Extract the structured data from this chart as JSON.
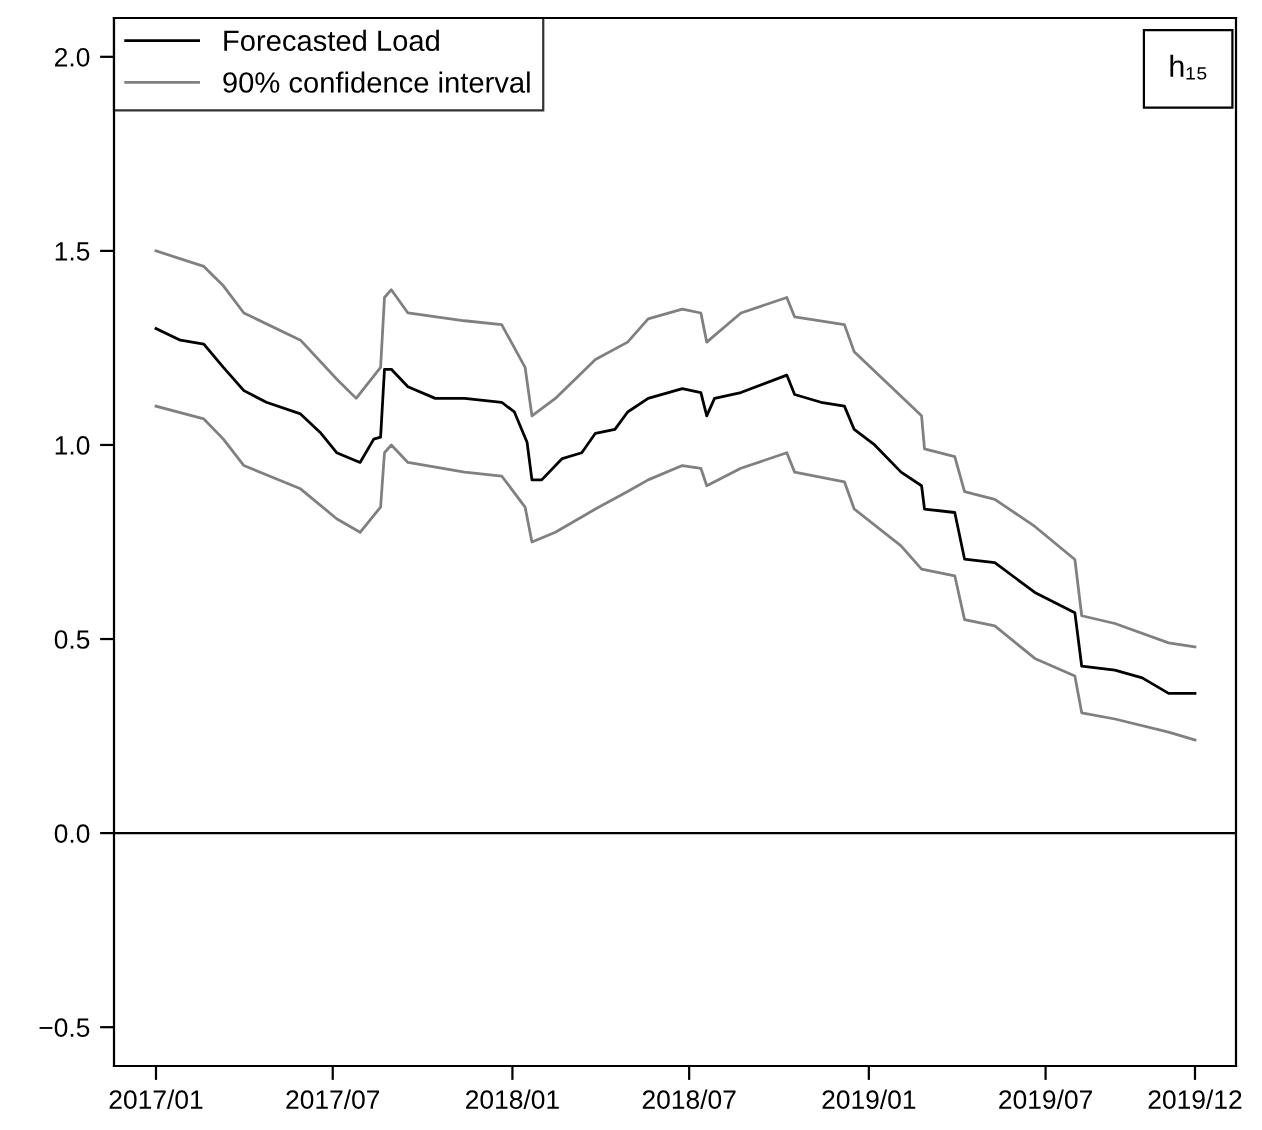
{
  "chart_data": {
    "type": "line",
    "annotations": [
      "h₁₅"
    ],
    "legend": "top left",
    "grid": false,
    "line_style": "solid",
    "marker": "none",
    "xlim": [
      "2016-11-19",
      "2020-01-12"
    ],
    "ylim": [
      -0.6,
      2.1
    ],
    "xticks": [
      {
        "value": "2017-01-01",
        "label": "2017/01"
      },
      {
        "value": "2017-07-01",
        "label": "2017/07"
      },
      {
        "value": "2018-01-01",
        "label": "2018/01"
      },
      {
        "value": "2018-07-01",
        "label": "2018/07"
      },
      {
        "value": "2019-01-01",
        "label": "2019/01"
      },
      {
        "value": "2019-07-01",
        "label": "2019/07"
      },
      {
        "value": "2019-12-01",
        "label": "2019/12"
      }
    ],
    "yticks": [
      {
        "value": -0.5,
        "label": "−0.5"
      },
      {
        "value": 0,
        "label": "0.0"
      },
      0.5,
      {
        "value": 1,
        "label": "1.0"
      },
      1.5,
      {
        "value": 2,
        "label": "2.0"
      }
    ],
    "ref_lines": [
      {
        "axis": "y",
        "value": 0,
        "color": "#000000"
      }
    ],
    "series": [
      {
        "name": "Forecasted Load",
        "color": "#000000",
        "x": [
          "2017-01-01",
          "2017-01-26",
          "2017-02-19",
          "2017-03-11",
          "2017-04-01",
          "2017-04-24",
          "2017-05-29",
          "2017-06-19",
          "2017-07-05",
          "2017-07-29",
          "2017-08-12",
          "2017-08-19",
          "2017-08-23",
          "2017-08-30",
          "2017-09-16",
          "2017-10-14",
          "2017-11-13",
          "2017-12-21",
          "2018-01-03",
          "2018-01-16",
          "2018-01-21",
          "2018-01-31",
          "2018-02-21",
          "2018-03-13",
          "2018-03-27",
          "2018-04-16",
          "2018-04-29",
          "2018-05-20",
          "2018-06-24",
          "2018-07-13",
          "2018-07-19",
          "2018-07-27",
          "2018-08-23",
          "2018-10-09",
          "2018-10-17",
          "2018-11-13",
          "2018-12-07",
          "2018-12-17",
          "2019-01-07",
          "2019-02-03",
          "2019-02-24",
          "2019-02-27",
          "2019-03-30",
          "2019-04-09",
          "2019-05-10",
          "2019-06-20",
          "2019-07-31",
          "2019-08-07",
          "2019-09-10",
          "2019-10-08",
          "2019-11-04",
          "2019-12-01"
        ],
        "values": [
          1.3,
          1.27,
          1.26,
          1.2,
          1.14,
          1.11,
          1.08,
          1.03,
          0.98,
          0.955,
          1.015,
          1.02,
          1.195,
          1.195,
          1.15,
          1.12,
          1.12,
          1.11,
          1.085,
          1.007,
          0.91,
          0.91,
          0.965,
          0.98,
          1.03,
          1.04,
          1.085,
          1.12,
          1.145,
          1.135,
          1.075,
          1.12,
          1.135,
          1.18,
          1.13,
          1.11,
          1.1,
          1.04,
          1.0,
          0.93,
          0.895,
          0.835,
          0.826,
          0.706,
          0.697,
          0.62,
          0.568,
          0.43,
          0.42,
          0.4,
          0.36,
          0.36
        ]
      },
      {
        "name": "90% confidence interval",
        "color": "#808080",
        "x": [
          "2017-01-01",
          "2017-02-19",
          "2017-03-11",
          "2017-04-01",
          "2017-05-29",
          "2017-07-05",
          "2017-07-25",
          "2017-08-19",
          "2017-08-23",
          "2017-08-30",
          "2017-09-16",
          "2017-11-13",
          "2017-12-21",
          "2018-01-14",
          "2018-01-21",
          "2018-02-14",
          "2018-03-27",
          "2018-04-29",
          "2018-05-20",
          "2018-06-24",
          "2018-07-13",
          "2018-07-19",
          "2018-08-23",
          "2018-10-09",
          "2018-10-17",
          "2018-12-07",
          "2018-12-17",
          "2019-02-24",
          "2019-02-27",
          "2019-03-30",
          "2019-04-09",
          "2019-05-10",
          "2019-06-20",
          "2019-07-31",
          "2019-08-07",
          "2019-09-10",
          "2019-11-04",
          "2019-12-01"
        ],
        "values": [
          1.5,
          1.46,
          1.41,
          1.34,
          1.27,
          1.17,
          1.12,
          1.2,
          1.38,
          1.4,
          1.34,
          1.32,
          1.31,
          1.2,
          1.075,
          1.12,
          1.22,
          1.265,
          1.325,
          1.35,
          1.34,
          1.265,
          1.34,
          1.38,
          1.33,
          1.31,
          1.24,
          1.075,
          0.99,
          0.97,
          0.88,
          0.86,
          0.79,
          0.705,
          0.56,
          0.54,
          0.49,
          0.48
        ]
      },
      {
        "color": "#808080",
        "x": [
          "2017-01-01",
          "2017-02-19",
          "2017-03-11",
          "2017-04-01",
          "2017-05-29",
          "2017-07-05",
          "2017-07-29",
          "2017-08-19",
          "2017-08-23",
          "2017-08-30",
          "2017-09-16",
          "2017-11-13",
          "2017-12-21",
          "2018-01-14",
          "2018-01-21",
          "2018-02-14",
          "2018-03-27",
          "2018-04-29",
          "2018-05-20",
          "2018-06-24",
          "2018-07-13",
          "2018-07-19",
          "2018-08-23",
          "2018-10-09",
          "2018-10-17",
          "2018-12-07",
          "2018-12-17",
          "2019-02-03",
          "2019-02-24",
          "2019-03-30",
          "2019-04-09",
          "2019-05-10",
          "2019-06-20",
          "2019-07-31",
          "2019-08-07",
          "2019-09-10",
          "2019-11-04",
          "2019-12-01"
        ],
        "values": [
          1.1,
          1.067,
          1.015,
          0.947,
          0.887,
          0.81,
          0.775,
          0.84,
          0.98,
          1.0,
          0.955,
          0.93,
          0.92,
          0.84,
          0.75,
          0.775,
          0.835,
          0.88,
          0.91,
          0.947,
          0.94,
          0.895,
          0.94,
          0.98,
          0.93,
          0.905,
          0.835,
          0.74,
          0.68,
          0.663,
          0.55,
          0.534,
          0.45,
          0.405,
          0.31,
          0.294,
          0.26,
          0.24
        ]
      }
    ]
  }
}
